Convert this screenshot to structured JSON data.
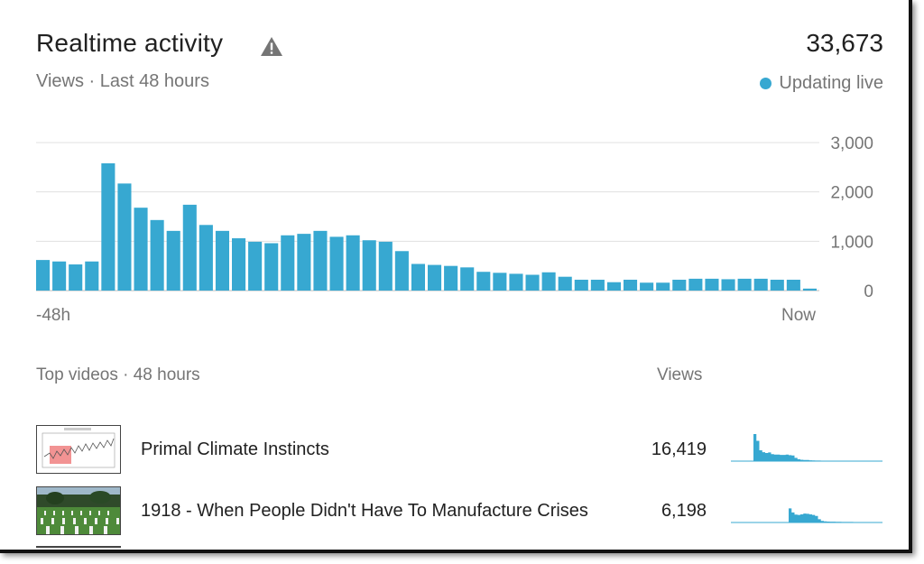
{
  "header": {
    "title": "Realtime activity",
    "subtitle": "Views · Last 48 hours",
    "total_views": "33,673",
    "live_status": "Updating live"
  },
  "colors": {
    "accent": "#37a8d1",
    "grid": "#e0e0e0",
    "warning_icon": "#757575"
  },
  "icons": {
    "warning": "warning-triangle-icon",
    "live": "live-dot-icon"
  },
  "chart_data": {
    "type": "bar",
    "x_start_label": "-48h",
    "x_end_label": "Now",
    "yticks": [
      "3,000",
      "2,000",
      "1,000",
      "0"
    ],
    "ylim": [
      0,
      3000
    ],
    "grid": true,
    "values": [
      620,
      590,
      530,
      590,
      2580,
      2170,
      1680,
      1430,
      1210,
      1740,
      1330,
      1210,
      1060,
      990,
      960,
      1120,
      1150,
      1210,
      1090,
      1120,
      1020,
      990,
      800,
      540,
      520,
      500,
      470,
      380,
      360,
      340,
      320,
      370,
      280,
      220,
      220,
      170,
      220,
      160,
      160,
      220,
      240,
      240,
      230,
      240,
      240,
      220,
      220,
      40
    ]
  },
  "top_videos": {
    "label": "Top videos · 48 hours",
    "views_header": "Views",
    "items": [
      {
        "title": "Primal Climate Instincts",
        "views": "16,419",
        "spark": [
          0,
          0,
          0,
          0,
          1000,
          750,
          400,
          330,
          300,
          320,
          260,
          240,
          240,
          230,
          230,
          240,
          220,
          210,
          120,
          70,
          50,
          40,
          40,
          30,
          25,
          20,
          20,
          18,
          15,
          15,
          14,
          14,
          12,
          12,
          10,
          10,
          10,
          10,
          10,
          10,
          10,
          10,
          10,
          10,
          10,
          10,
          10,
          8
        ]
      },
      {
        "title": "1918 - When People Didn't Have To Manufacture Crises",
        "views": "6,198",
        "spark": [
          0,
          0,
          0,
          0,
          0,
          0,
          0,
          0,
          0,
          0,
          0,
          0,
          0,
          0,
          0,
          0,
          520,
          370,
          290,
          280,
          300,
          330,
          320,
          300,
          280,
          240,
          120,
          60,
          40,
          35,
          30,
          28,
          26,
          24,
          22,
          20,
          20,
          20,
          18,
          18,
          18,
          18,
          16,
          16,
          16,
          16,
          16,
          12
        ]
      }
    ]
  }
}
